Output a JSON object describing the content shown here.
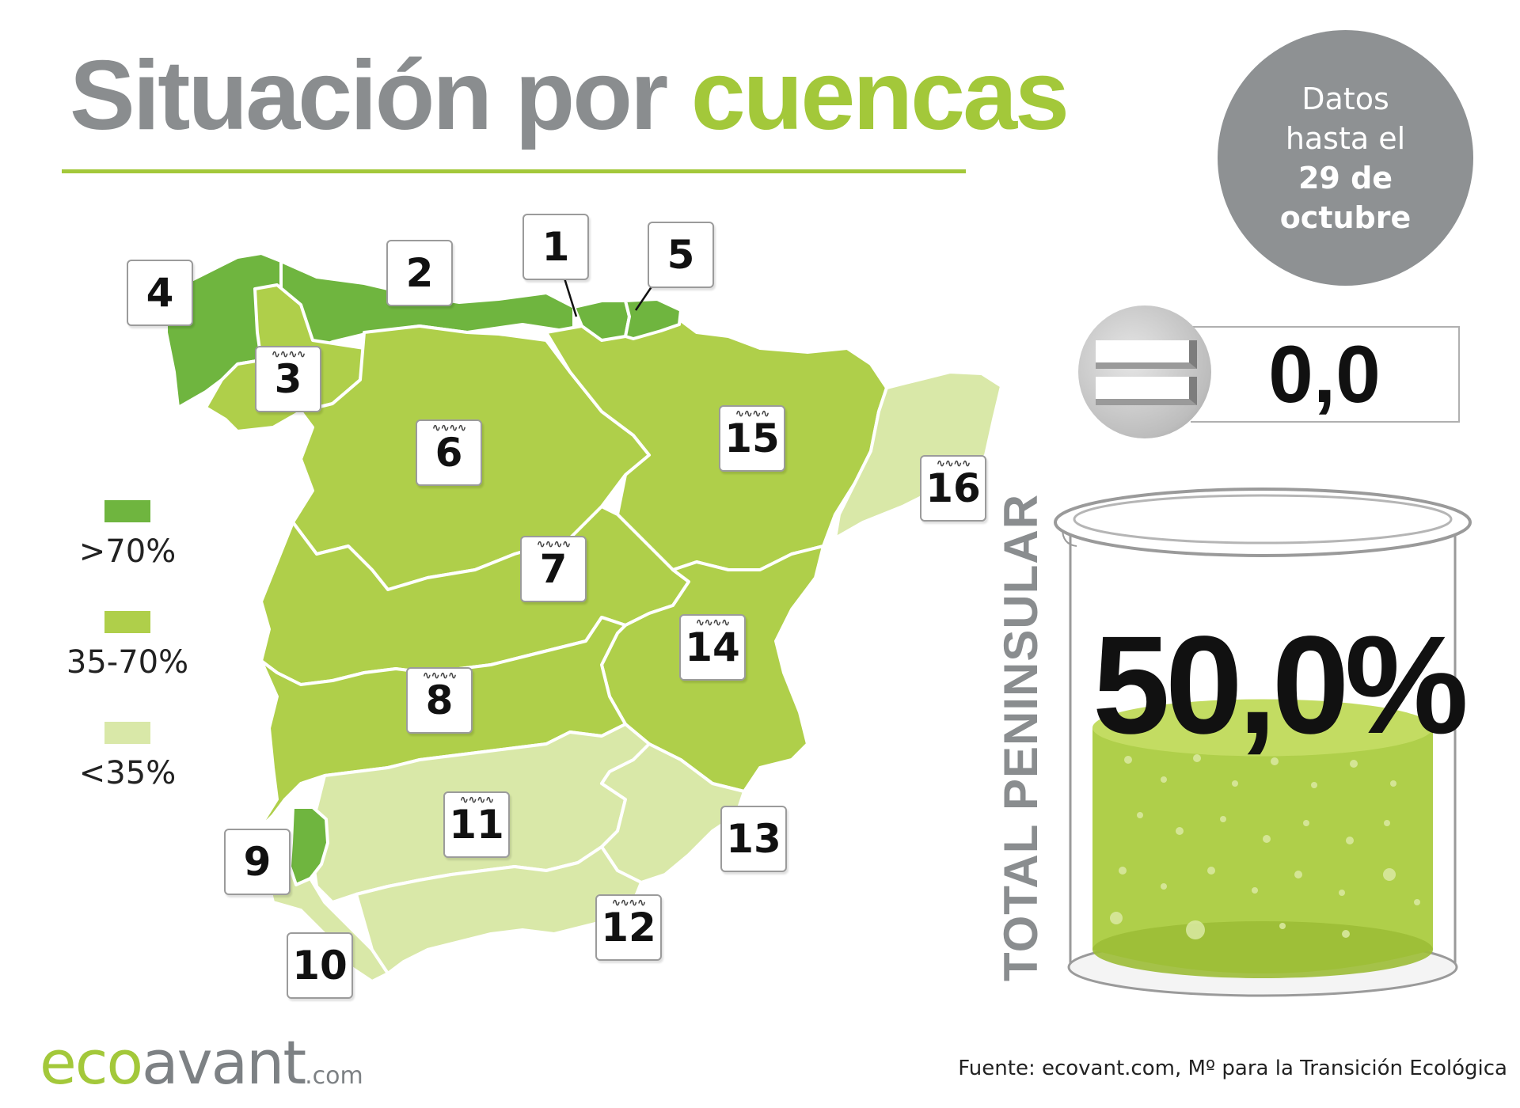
{
  "header": {
    "title_main": "Situación por ",
    "title_accent": "cuencas"
  },
  "date_badge": {
    "line1": "Datos",
    "line2": "hasta el",
    "line3": "29 de",
    "line4": "octubre"
  },
  "legend": {
    "items": [
      {
        "label": ">70%",
        "color": "#6fb53f"
      },
      {
        "label": "35-70%",
        "color": "#afcf4a"
      },
      {
        "label": "<35%",
        "color": "#d9e8a8"
      }
    ]
  },
  "map": {
    "basin_labels": [
      "1",
      "2",
      "3",
      "4",
      "5",
      "6",
      "7",
      "8",
      "9",
      "10",
      "11",
      "12",
      "13",
      "14",
      "15",
      "16"
    ],
    "basin_levels": {
      "1": ">70%",
      "2": ">70%",
      "3": "35-70%",
      "4": ">70%",
      "5": ">70%",
      "6": "35-70%",
      "7": "35-70%",
      "8": "35-70%",
      "9": ">70%",
      "10": "<35%",
      "11": "<35%",
      "12": "<35%",
      "13": "<35%",
      "14": "35-70%",
      "15": "35-70%",
      "16": "<35%"
    }
  },
  "summary": {
    "change_value": "0,0",
    "change_icon": "equals-icon",
    "total_label": "TOTAL PENINSULAR",
    "total_value": "50,0%",
    "total_fraction": 0.5
  },
  "footer": {
    "logo_eco": "eco",
    "logo_avant": "avant",
    "logo_domain": ".com",
    "source": "Fuente: ecovant.com, Mº para la Transición Ecológica"
  }
}
